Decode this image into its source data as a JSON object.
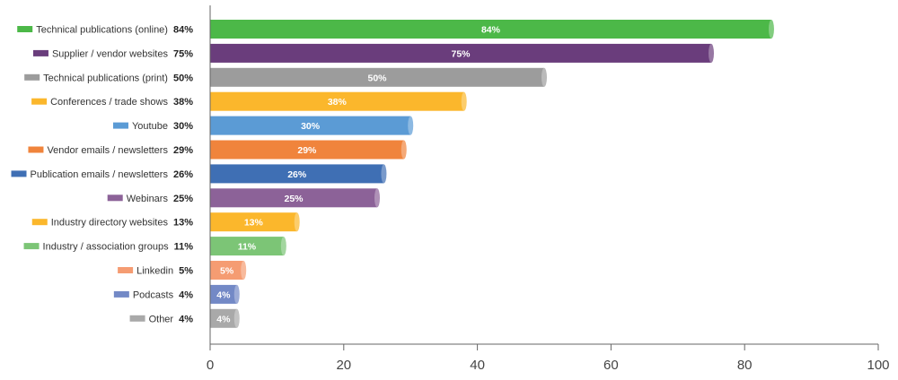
{
  "chart_data": {
    "type": "bar",
    "orientation": "horizontal",
    "title": "",
    "xlabel": "",
    "ylabel": "",
    "xlim": [
      0,
      100
    ],
    "xticks": [
      0,
      20,
      40,
      60,
      80,
      100
    ],
    "grid": false,
    "legend": "left, one entry per bar",
    "series": [
      {
        "categories": [
          "Technical publications (online)",
          "Supplier / vendor websites",
          "Technical publications (print)",
          "Conferences / trade shows",
          "Youtube",
          "Vendor emails / newsletters",
          "Publication emails / newsletters",
          "Webinars",
          "Industry directory websites",
          "Industry / association groups",
          "Linkedin",
          "Podcasts",
          "Other"
        ],
        "values": [
          84,
          75,
          50,
          38,
          30,
          29,
          26,
          25,
          13,
          11,
          5,
          4,
          4
        ],
        "labels": [
          "84%",
          "75%",
          "50%",
          "38%",
          "30%",
          "29%",
          "26%",
          "25%",
          "13%",
          "11%",
          "5%",
          "4%",
          "4%"
        ],
        "colors": [
          "#4cb848",
          "#6a3d7c",
          "#9c9c9c",
          "#fbb72c",
          "#5b9bd5",
          "#f0843c",
          "#3f6fb4",
          "#8c6298",
          "#fbb72c",
          "#7cc576",
          "#f59c72",
          "#7389c6",
          "#a9a9a9"
        ]
      }
    ]
  }
}
